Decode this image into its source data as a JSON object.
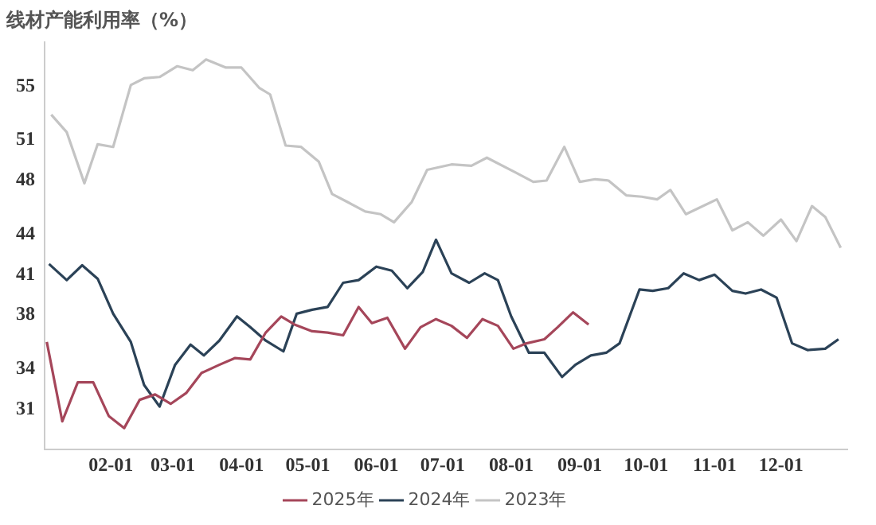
{
  "chart_data": {
    "type": "line",
    "title": "线材产能利用率（%）",
    "xlim": [
      "--01-02",
      "--12-31"
    ],
    "xticks": [
      {
        "value": "--02-01",
        "label": "02-01"
      },
      {
        "value": "--03-01",
        "label": "03-01"
      },
      {
        "value": "--04-01",
        "label": "04-01"
      },
      {
        "value": "--05-01",
        "label": "05-01"
      },
      {
        "value": "--06-01",
        "label": "06-01"
      },
      {
        "value": "--07-01",
        "label": "07-01"
      },
      {
        "value": "--08-01",
        "label": "08-01"
      },
      {
        "value": "--09-01",
        "label": "09-01"
      },
      {
        "value": "--10-01",
        "label": "10-01"
      },
      {
        "value": "--11-01",
        "label": "11-01"
      },
      {
        "value": "--12-01",
        "label": "12-01"
      }
    ],
    "ylim": [
      28,
      58.3
    ],
    "yticks": [
      31,
      34,
      38,
      41,
      44,
      48,
      51,
      55
    ],
    "grid": false,
    "legend": "bottom",
    "marker": "none",
    "line_style": "solid",
    "series": [
      {
        "name": "2025年",
        "color": "#a5465a",
        "x": [
          "--01-03",
          "--01-10",
          "--01-17",
          "--01-24",
          "--01-31",
          "--02-07",
          "--02-14",
          "--02-21",
          "--02-28",
          "--03-07",
          "--03-14",
          "--03-22",
          "--03-29",
          "--04-05",
          "--04-12",
          "--04-19",
          "--04-25",
          "--05-03",
          "--05-10",
          "--05-17",
          "--05-24",
          "--05-30",
          "--06-06",
          "--06-14",
          "--06-21",
          "--06-28",
          "--07-05",
          "--07-12",
          "--07-19",
          "--07-26",
          "--08-02",
          "--08-08",
          "--08-16",
          "--08-22",
          "--08-29",
          "--09-05"
        ],
        "values": [
          36.0,
          30.1,
          33.0,
          33.0,
          30.5,
          29.6,
          31.7,
          32.1,
          31.4,
          32.2,
          33.7,
          34.3,
          34.8,
          34.7,
          36.7,
          37.9,
          37.3,
          36.8,
          36.7,
          36.5,
          38.6,
          37.4,
          37.8,
          35.5,
          37.1,
          37.7,
          37.2,
          36.3,
          37.7,
          37.2,
          35.5,
          35.9,
          36.2,
          37.1,
          38.2,
          37.3
        ]
      },
      {
        "name": "2024年",
        "color": "#2b4257",
        "x": [
          "--01-04",
          "--01-12",
          "--01-19",
          "--01-26",
          "--02-02",
          "--02-10",
          "--02-16",
          "--02-23",
          "--03-02",
          "--03-09",
          "--03-15",
          "--03-22",
          "--03-30",
          "--04-05",
          "--04-12",
          "--04-20",
          "--04-26",
          "--05-03",
          "--05-10",
          "--05-17",
          "--05-24",
          "--06-01",
          "--06-08",
          "--06-15",
          "--06-22",
          "--06-28",
          "--07-05",
          "--07-13",
          "--07-20",
          "--07-26",
          "--08-01",
          "--08-09",
          "--08-16",
          "--08-24",
          "--08-30",
          "--09-06",
          "--09-13",
          "--09-19",
          "--09-28",
          "--10-04",
          "--10-11",
          "--10-18",
          "--10-25",
          "--11-01",
          "--11-09",
          "--11-15",
          "--11-22",
          "--11-29",
          "--12-06",
          "--12-13",
          "--12-21",
          "--12-27"
        ],
        "values": [
          41.8,
          40.6,
          41.7,
          40.7,
          38.1,
          36.0,
          32.8,
          31.2,
          34.3,
          35.8,
          35.0,
          36.1,
          37.9,
          37.1,
          36.1,
          35.3,
          38.1,
          38.4,
          38.6,
          40.4,
          40.6,
          41.6,
          41.3,
          40.0,
          41.2,
          43.6,
          41.1,
          40.4,
          41.1,
          40.6,
          37.9,
          35.2,
          35.2,
          33.4,
          34.3,
          35.0,
          35.2,
          35.9,
          39.9,
          39.8,
          40.0,
          41.1,
          40.6,
          41.0,
          39.8,
          39.6,
          39.9,
          39.3,
          35.9,
          35.4,
          35.5,
          36.2
        ]
      },
      {
        "name": "2023年",
        "color": "#c4c4c4",
        "x": [
          "--01-05",
          "--01-12",
          "--01-20",
          "--01-26",
          "--02-02",
          "--02-10",
          "--02-16",
          "--02-23",
          "--03-03",
          "--03-10",
          "--03-16",
          "--03-25",
          "--04-01",
          "--04-09",
          "--04-14",
          "--04-21",
          "--04-28",
          "--05-06",
          "--05-12",
          "--05-19",
          "--05-27",
          "--06-03",
          "--06-09",
          "--06-17",
          "--06-24",
          "--07-05",
          "--07-14",
          "--07-21",
          "--08-03",
          "--08-11",
          "--08-17",
          "--08-25",
          "--09-01",
          "--09-08",
          "--09-14",
          "--09-22",
          "--09-29",
          "--10-06",
          "--10-12",
          "--10-19",
          "--11-02",
          "--11-09",
          "--11-16",
          "--11-23",
          "--12-01",
          "--12-08",
          "--12-15",
          "--12-21",
          "--12-28"
        ],
        "values": [
          52.9,
          51.6,
          47.8,
          50.7,
          50.5,
          55.1,
          55.6,
          55.7,
          56.5,
          56.2,
          57.0,
          56.4,
          56.4,
          54.9,
          54.4,
          50.6,
          50.5,
          49.4,
          47.0,
          46.4,
          45.7,
          45.5,
          44.9,
          46.4,
          48.8,
          49.2,
          49.1,
          49.7,
          48.6,
          47.9,
          48.0,
          50.5,
          47.9,
          48.1,
          48.0,
          46.9,
          46.8,
          46.6,
          47.3,
          45.5,
          46.6,
          44.3,
          44.9,
          43.9,
          45.1,
          43.5,
          46.1,
          45.3,
          43.0
        ]
      }
    ]
  }
}
